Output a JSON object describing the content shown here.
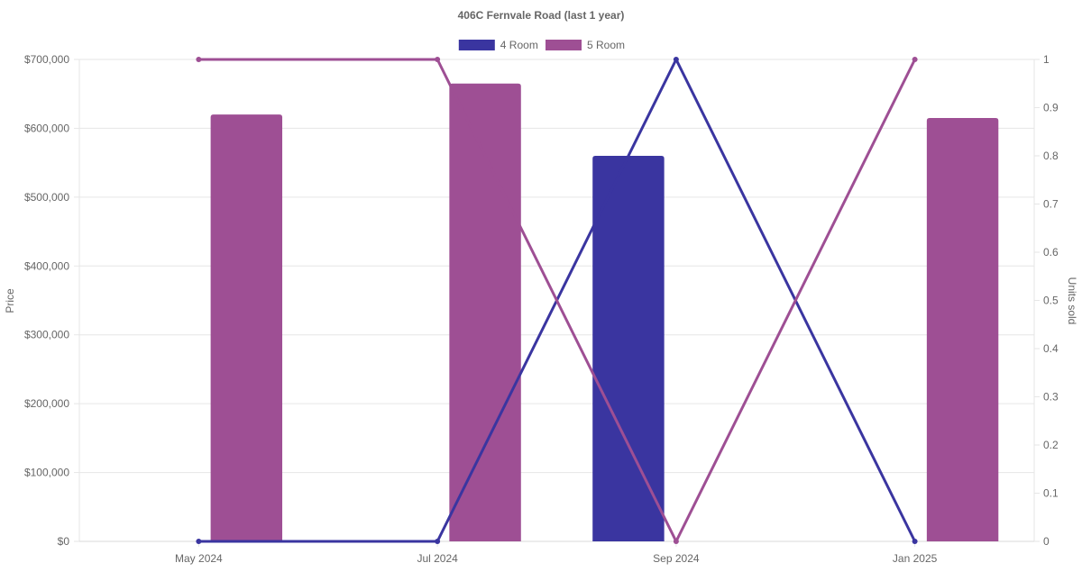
{
  "chart_data": {
    "type": "bar",
    "title": "406C Fernvale Road (last 1 year)",
    "categories": [
      "May 2024",
      "Jul 2024",
      "Sep 2024",
      "Jan 2025"
    ],
    "y_left": {
      "label": "Price",
      "range": [
        0,
        700000
      ],
      "ticks": [
        "$0",
        "$100,000",
        "$200,000",
        "$300,000",
        "$400,000",
        "$500,000",
        "$600,000",
        "$700,000"
      ]
    },
    "y_right": {
      "label": "Units sold",
      "range": [
        0,
        1
      ],
      "ticks": [
        "0",
        "0.1",
        "0.2",
        "0.3",
        "0.4",
        "0.5",
        "0.6",
        "0.7",
        "0.8",
        "0.9",
        "1"
      ]
    },
    "grid": true,
    "legend_position": "top-center",
    "series": [
      {
        "name": "4 Room",
        "color": "#3a35a0",
        "price_bars": [
          null,
          null,
          560000,
          null
        ],
        "units_sold": [
          0,
          0,
          1,
          0
        ]
      },
      {
        "name": "5 Room",
        "color": "#9e4f94",
        "price_bars": [
          620000,
          665000,
          null,
          615000
        ],
        "units_sold": [
          1,
          1,
          0,
          1
        ]
      }
    ]
  }
}
